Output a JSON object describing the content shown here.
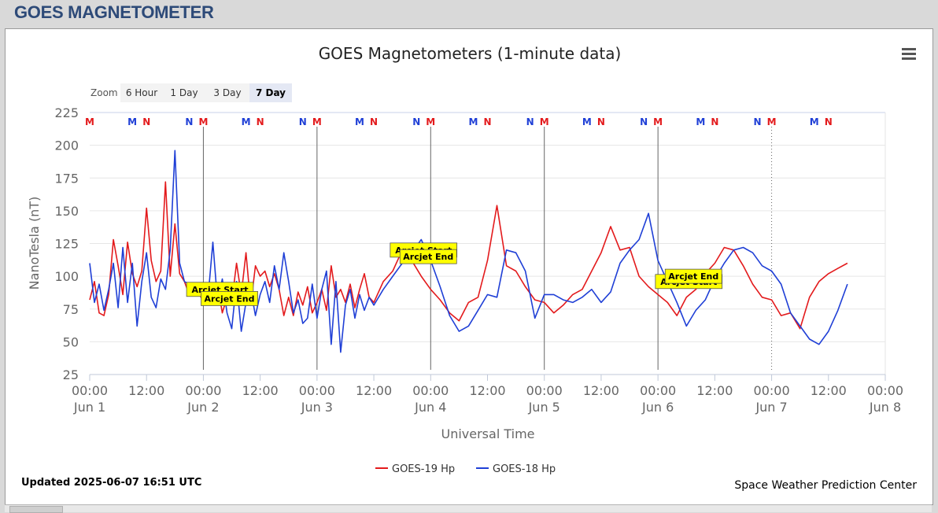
{
  "page_title": "GOES MAGNETOMETER",
  "zoom": {
    "label": "Zoom",
    "buttons": [
      "6 Hour",
      "1 Day",
      "3 Day",
      "7 Day"
    ],
    "selected": "7 Day"
  },
  "updated_text": "Updated 2025-06-07 16:51 UTC",
  "credit_text": "Space Weather Prediction Center",
  "colors": {
    "goes19": "#e31a1c",
    "goes18": "#1f3fd6",
    "title": "#2d4a78"
  },
  "chart_data": {
    "type": "line",
    "title": "GOES Magnetometers (1-minute data)",
    "xlabel": "Universal Time",
    "ylabel": "NanoTesla (nT)",
    "ylim": [
      25,
      225
    ],
    "yticks": [
      25,
      50,
      75,
      100,
      125,
      150,
      175,
      200,
      225
    ],
    "xlim_hours": [
      0,
      168
    ],
    "xticks": [
      {
        "hour": 0,
        "time": "00:00",
        "date": "Jun 1"
      },
      {
        "hour": 12,
        "time": "12:00",
        "date": ""
      },
      {
        "hour": 24,
        "time": "00:00",
        "date": "Jun 2"
      },
      {
        "hour": 36,
        "time": "12:00",
        "date": ""
      },
      {
        "hour": 48,
        "time": "00:00",
        "date": "Jun 3"
      },
      {
        "hour": 60,
        "time": "12:00",
        "date": ""
      },
      {
        "hour": 72,
        "time": "00:00",
        "date": "Jun 4"
      },
      {
        "hour": 84,
        "time": "12:00",
        "date": ""
      },
      {
        "hour": 96,
        "time": "00:00",
        "date": "Jun 5"
      },
      {
        "hour": 108,
        "time": "12:00",
        "date": ""
      },
      {
        "hour": 120,
        "time": "00:00",
        "date": "Jun 6"
      },
      {
        "hour": 132,
        "time": "12:00",
        "date": ""
      },
      {
        "hour": 144,
        "time": "00:00",
        "date": "Jun 7"
      },
      {
        "hour": 156,
        "time": "12:00",
        "date": ""
      },
      {
        "hour": 168,
        "time": "00:00",
        "date": "Jun 8"
      }
    ],
    "grid": true,
    "legend_position": "bottom-center",
    "day_lines_hours": [
      24,
      48,
      72,
      96,
      120
    ],
    "now_line_hour": 144,
    "series": [
      {
        "name": "GOES-19 Hp",
        "color": "#e31a1c",
        "x": [
          0,
          1,
          2,
          3,
          4,
          5,
          6,
          7,
          8,
          9,
          10,
          11,
          12,
          13,
          14,
          15,
          16,
          17,
          18,
          19,
          20,
          21,
          22,
          23,
          24,
          25,
          26,
          27,
          28,
          29,
          30,
          31,
          32,
          33,
          34,
          35,
          36,
          37,
          38,
          39,
          40,
          41,
          42,
          43,
          44,
          45,
          46,
          47,
          48,
          49,
          50,
          51,
          52,
          53,
          54,
          55,
          56,
          57,
          58,
          59,
          60,
          62,
          64,
          66,
          68,
          70,
          72,
          74,
          76,
          78,
          80,
          82,
          84,
          86,
          88,
          90,
          92,
          94,
          96,
          98,
          100,
          102,
          104,
          106,
          108,
          110,
          112,
          114,
          116,
          118,
          120,
          122,
          124,
          126,
          128,
          130,
          132,
          134,
          136,
          138,
          140,
          142,
          144,
          146,
          148,
          150,
          152,
          154,
          156,
          158,
          160
        ],
        "y": [
          82,
          96,
          72,
          70,
          86,
          128,
          108,
          86,
          126,
          102,
          92,
          104,
          152,
          112,
          96,
          104,
          172,
          100,
          140,
          102,
          96,
          86,
          94,
          88,
          80,
          88,
          92,
          94,
          72,
          84,
          80,
          110,
          86,
          118,
          78,
          108,
          100,
          104,
          92,
          102,
          90,
          70,
          84,
          70,
          88,
          78,
          92,
          72,
          80,
          90,
          74,
          108,
          84,
          90,
          80,
          94,
          76,
          90,
          102,
          84,
          80,
          96,
          104,
          120,
          112,
          100,
          90,
          82,
          72,
          66,
          80,
          84,
          112,
          154,
          108,
          104,
          92,
          82,
          80,
          72,
          78,
          86,
          90,
          104,
          118,
          138,
          120,
          122,
          100,
          92,
          86,
          80,
          70,
          84,
          90,
          102,
          110,
          122,
          120,
          108,
          94,
          84,
          82,
          70,
          72,
          60,
          84,
          96,
          102,
          106,
          110
        ]
      },
      {
        "name": "GOES-18 Hp",
        "color": "#1f3fd6",
        "x": [
          0,
          1,
          2,
          3,
          4,
          5,
          6,
          7,
          8,
          9,
          10,
          11,
          12,
          13,
          14,
          15,
          16,
          17,
          18,
          19,
          20,
          21,
          22,
          23,
          24,
          25,
          26,
          27,
          28,
          29,
          30,
          31,
          32,
          33,
          34,
          35,
          36,
          37,
          38,
          39,
          40,
          41,
          42,
          43,
          44,
          45,
          46,
          47,
          48,
          49,
          50,
          51,
          52,
          53,
          54,
          55,
          56,
          57,
          58,
          59,
          60,
          62,
          64,
          66,
          68,
          70,
          72,
          74,
          76,
          78,
          80,
          82,
          84,
          86,
          88,
          90,
          92,
          94,
          96,
          98,
          100,
          102,
          104,
          106,
          108,
          110,
          112,
          114,
          116,
          118,
          120,
          122,
          124,
          126,
          128,
          130,
          132,
          134,
          136,
          138,
          140,
          142,
          144,
          146,
          148,
          150,
          152,
          154,
          156,
          158,
          160
        ],
        "y": [
          110,
          80,
          94,
          74,
          90,
          110,
          76,
          122,
          80,
          110,
          62,
          96,
          118,
          84,
          76,
          98,
          90,
          120,
          196,
          110,
          96,
          94,
          92,
          90,
          88,
          84,
          126,
          80,
          98,
          72,
          60,
          96,
          58,
          80,
          90,
          70,
          86,
          96,
          80,
          108,
          90,
          118,
          96,
          72,
          82,
          64,
          68,
          94,
          68,
          90,
          104,
          48,
          96,
          42,
          78,
          90,
          68,
          86,
          74,
          84,
          78,
          90,
          100,
          110,
          118,
          128,
          112,
          92,
          70,
          58,
          62,
          74,
          86,
          84,
          120,
          118,
          104,
          68,
          86,
          86,
          82,
          80,
          84,
          90,
          80,
          88,
          110,
          120,
          128,
          148,
          112,
          96,
          80,
          62,
          74,
          82,
          98,
          110,
          120,
          122,
          118,
          108,
          104,
          94,
          72,
          62,
          52,
          48,
          58,
          74,
          94
        ]
      }
    ],
    "top_markers": [
      {
        "hour": 0,
        "label": "M",
        "color": "#e31a1c"
      },
      {
        "hour": 9,
        "label": "M",
        "color": "#1f3fd6"
      },
      {
        "hour": 12,
        "label": "N",
        "color": "#e31a1c"
      },
      {
        "hour": 21,
        "label": "N",
        "color": "#1f3fd6"
      },
      {
        "hour": 24,
        "label": "M",
        "color": "#e31a1c"
      },
      {
        "hour": 33,
        "label": "M",
        "color": "#1f3fd6"
      },
      {
        "hour": 36,
        "label": "N",
        "color": "#e31a1c"
      },
      {
        "hour": 45,
        "label": "N",
        "color": "#1f3fd6"
      },
      {
        "hour": 48,
        "label": "M",
        "color": "#e31a1c"
      },
      {
        "hour": 57,
        "label": "M",
        "color": "#1f3fd6"
      },
      {
        "hour": 60,
        "label": "N",
        "color": "#e31a1c"
      },
      {
        "hour": 69,
        "label": "N",
        "color": "#1f3fd6"
      },
      {
        "hour": 72,
        "label": "M",
        "color": "#e31a1c"
      },
      {
        "hour": 81,
        "label": "M",
        "color": "#1f3fd6"
      },
      {
        "hour": 84,
        "label": "N",
        "color": "#e31a1c"
      },
      {
        "hour": 93,
        "label": "N",
        "color": "#1f3fd6"
      },
      {
        "hour": 96,
        "label": "M",
        "color": "#e31a1c"
      },
      {
        "hour": 105,
        "label": "M",
        "color": "#1f3fd6"
      },
      {
        "hour": 108,
        "label": "N",
        "color": "#e31a1c"
      },
      {
        "hour": 117,
        "label": "N",
        "color": "#1f3fd6"
      },
      {
        "hour": 120,
        "label": "M",
        "color": "#e31a1c"
      },
      {
        "hour": 129,
        "label": "M",
        "color": "#1f3fd6"
      },
      {
        "hour": 132,
        "label": "N",
        "color": "#e31a1c"
      },
      {
        "hour": 141,
        "label": "N",
        "color": "#1f3fd6"
      },
      {
        "hour": 144,
        "label": "M",
        "color": "#e31a1c"
      },
      {
        "hour": 153,
        "label": "M",
        "color": "#1f3fd6"
      },
      {
        "hour": 156,
        "label": "N",
        "color": "#e31a1c"
      }
    ],
    "annotations": [
      {
        "text": "Arcjet Start",
        "hour": 27.5,
        "value": 90
      },
      {
        "text": "Arcjet End",
        "hour": 29.5,
        "value": 83
      },
      {
        "text": "Arcjet Start",
        "hour": 70.5,
        "value": 120
      },
      {
        "text": "Arcjet End",
        "hour": 71.5,
        "value": 115
      },
      {
        "text": "Arcjet Start",
        "hour": 126.5,
        "value": 96
      },
      {
        "text": "Arcjet End",
        "hour": 127.5,
        "value": 100
      }
    ]
  }
}
